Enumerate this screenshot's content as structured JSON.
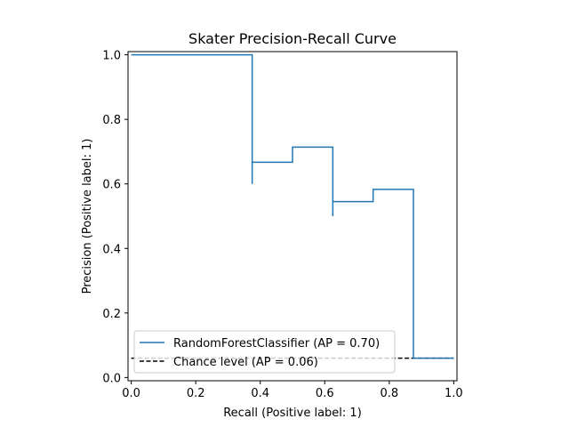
{
  "chart_data": {
    "type": "line",
    "title": "Skater Precision-Recall Curve",
    "xlabel": "Recall (Positive label: 1)",
    "ylabel": "Precision (Positive label: 1)",
    "xlim": [
      -0.01,
      1.01
    ],
    "ylim": [
      -0.01,
      1.01
    ],
    "xticks": [
      "0.0",
      "0.2",
      "0.4",
      "0.6",
      "0.8",
      "1.0"
    ],
    "yticks": [
      "0.0",
      "0.2",
      "0.4",
      "0.6",
      "0.8",
      "1.0"
    ],
    "grid": false,
    "legend_position": "lower-left",
    "series": [
      {
        "name": "RandomForestClassifier (AP = 0.70)",
        "color": "#1f77b4",
        "style": "steps",
        "x": [
          1.0,
          0.875,
          0.875,
          0.75,
          0.75,
          0.625,
          0.625,
          0.625,
          0.5,
          0.5,
          0.375,
          0.375,
          0.375,
          0.0
        ],
        "y": [
          0.06,
          0.06,
          0.583,
          0.583,
          0.545,
          0.545,
          0.5,
          0.714,
          0.714,
          0.667,
          0.667,
          0.6,
          1.0,
          1.0
        ]
      },
      {
        "name": "Chance level (AP = 0.06)",
        "color": "#000000",
        "style": "dashed",
        "x": [
          0.0,
          1.0
        ],
        "y": [
          0.06,
          0.06
        ]
      }
    ]
  }
}
